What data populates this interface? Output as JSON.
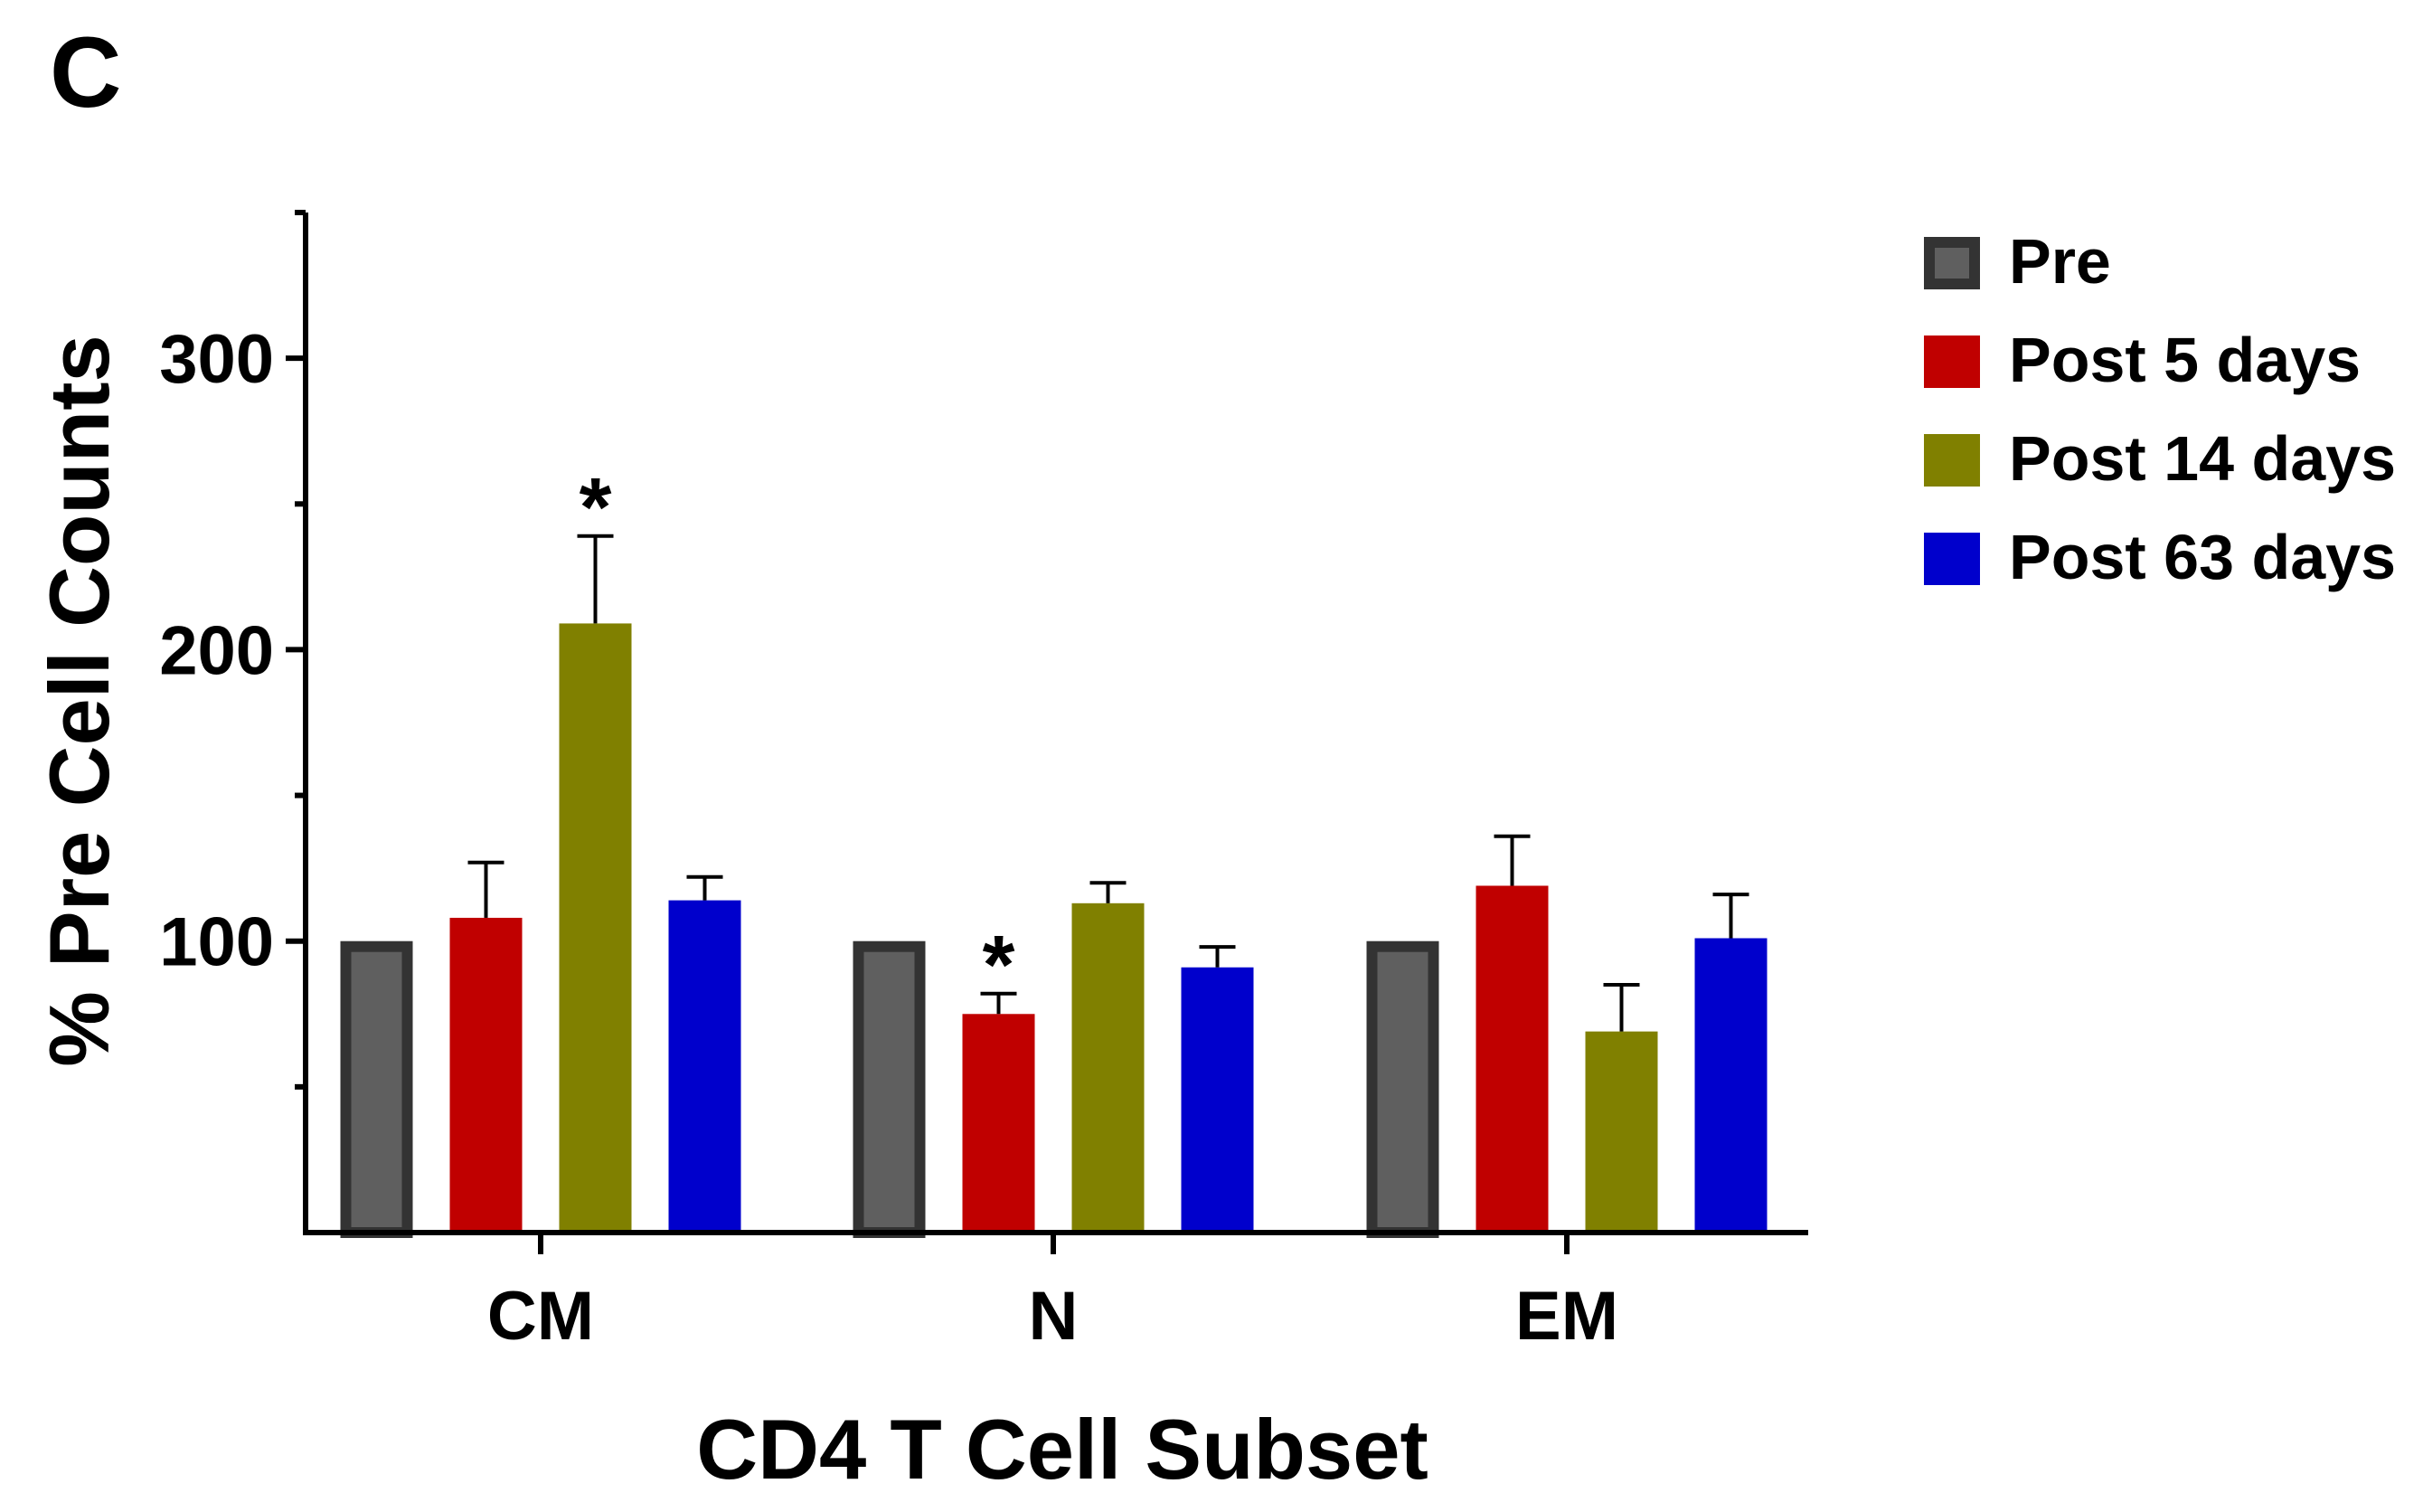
{
  "panel_label": "C",
  "chart_data": {
    "type": "bar",
    "title": "",
    "xlabel": "CD4 T Cell Subset",
    "ylabel": "% Pre Cell Counts",
    "categories": [
      "CM",
      "N",
      "EM"
    ],
    "ylim": [
      0,
      350
    ],
    "yticks": [
      100,
      200,
      300
    ],
    "yticks_minor": [
      50,
      150,
      250,
      350
    ],
    "series": [
      {
        "name": "Pre",
        "color": "#5f5f5f",
        "edge": "#333333",
        "values": [
          100,
          100,
          100
        ],
        "errors": [
          0,
          0,
          0
        ]
      },
      {
        "name": "Post 5 days",
        "color": "#c00000",
        "values": [
          108,
          75,
          119
        ],
        "errors": [
          19,
          7,
          17
        ]
      },
      {
        "name": "Post 14 days",
        "color": "#808000",
        "values": [
          209,
          113,
          69
        ],
        "errors": [
          30,
          7,
          16
        ]
      },
      {
        "name": "Post 63 days",
        "color": "#0000cc",
        "values": [
          114,
          91,
          101
        ],
        "errors": [
          8,
          7,
          15
        ]
      }
    ],
    "annotations": [
      {
        "text": "*",
        "category": "CM",
        "series": "Post 14 days"
      },
      {
        "text": "*",
        "category": "N",
        "series": "Post 5 days"
      }
    ],
    "legend_position": "right",
    "grid": false
  }
}
